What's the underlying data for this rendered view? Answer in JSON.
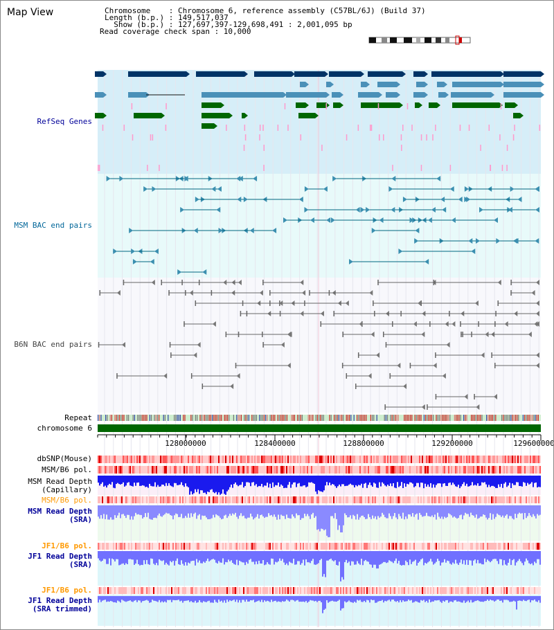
{
  "header": {
    "title": "Map View",
    "chromosome_line": "Chromosome    : Chromosome 6, reference assembly (C57BL/6J) (Build 37)",
    "length_line": "Length (b.p.) : 149,517,037",
    "show_line": "  Show (b.p.) : 127,697,397-129,698,491 : 2,001,095 bp",
    "coverage_line": "Read coverage check span : 10,000"
  },
  "tracks": {
    "refseq": "RefSeq Genes",
    "msm_bac": "MSM BAC end pairs",
    "b6n_bac": "B6N BAC end pairs",
    "repeat": "Repeat",
    "chromosome": "chromosome 6",
    "dbsnp": "dbSNP(Mouse)",
    "msm_b6_pol_1": "MSM/B6 pol.",
    "msm_read_depth_cap": "MSM Read Depth\n(Capillary)",
    "msm_b6_pol_2": "MSM/B6 pol.",
    "msm_read_depth_sra": "MSM Read Depth\n(SRA)",
    "jf1_b6_pol_1": "JF1/B6 pol.",
    "jf1_read_depth_sra": "JF1 Read Depth\n(SRA)",
    "jf1_b6_pol_2": "JF1/B6 pol.",
    "jf1_read_depth_trimmed": "JF1 Read Depth\n(SRA trimmed)"
  },
  "axis": {
    "ticks": [
      "128000000",
      "128400000",
      "128800000",
      "129200000",
      "129600000"
    ]
  },
  "colors": {
    "refseq_bg": "#d6eef8",
    "msm_bg": "#e8fafa",
    "b6n_bg": "#f8f8fc",
    "gene_dark": "#003366",
    "gene_mid": "#4a90b8",
    "gene_green": "#006600",
    "pink": "#ff99cc",
    "msm_line": "#006680",
    "b6n_line": "#555555",
    "chrom_green": "#006600",
    "depth_blue": "#0000ee",
    "depth_light": "#7777ff",
    "pol_red": "#ee2222",
    "label_blue": "#000099",
    "label_orange": "#ff9900",
    "label_teal": "#006699"
  }
}
